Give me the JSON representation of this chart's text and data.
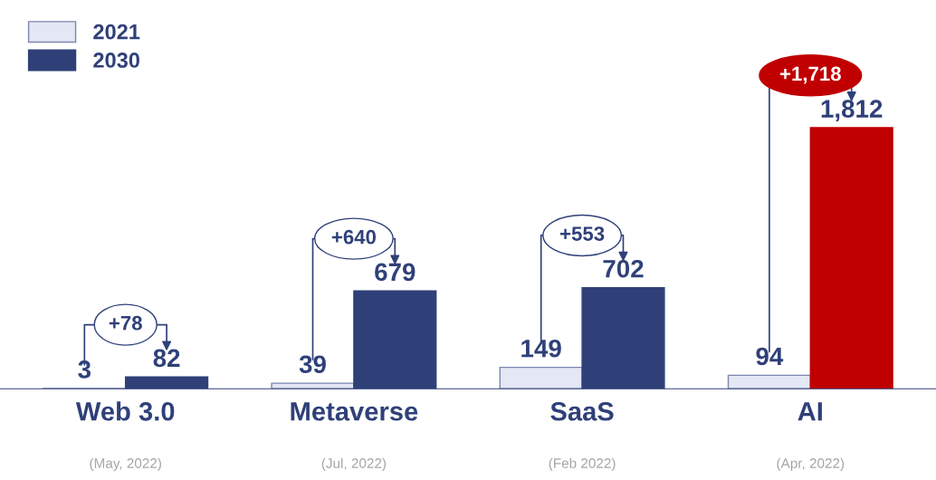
{
  "chart_data": {
    "type": "bar",
    "categories": [
      "Web 3.0",
      "Metaverse",
      "SaaS",
      "AI"
    ],
    "series": [
      {
        "name": "2021",
        "color": "#e4e7f4",
        "values": [
          3,
          39,
          149,
          94
        ],
        "value_labels": [
          "3",
          "39",
          "149",
          "94"
        ]
      },
      {
        "name": "2030",
        "color": "#2f4079",
        "colors": [
          "#2f4079",
          "#2f4079",
          "#2f4079",
          "#c00000"
        ],
        "values": [
          82,
          679,
          702,
          1812
        ],
        "value_labels": [
          "82",
          "679",
          "702",
          "1,812"
        ]
      }
    ],
    "legend": "top left",
    "grid": false,
    "annotations": [
      {
        "text": "+78",
        "x": "Web 3.0",
        "y": 82
      },
      {
        "text": "+640",
        "x": "Metaverse",
        "y": 679
      },
      {
        "text": "+553",
        "x": "SaaS",
        "y": 702
      },
      {
        "text": "+1,718",
        "x": "AI",
        "y": 1812
      },
      "(May, 2022)",
      "(Jul, 2022)",
      "(Feb 2022)",
      "(Apr, 2022)"
    ]
  }
}
